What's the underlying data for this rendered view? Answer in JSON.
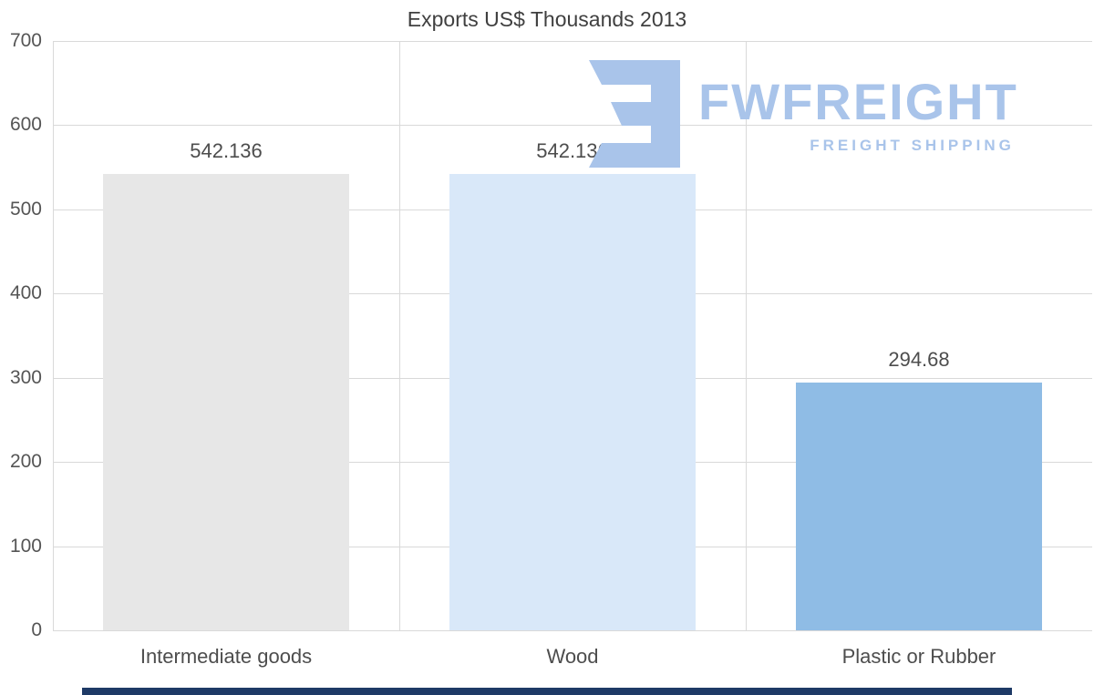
{
  "chart_data": {
    "type": "bar",
    "title": "Exports US$ Thousands 2013",
    "categories": [
      "Intermediate goods",
      "Wood",
      "Plastic or Rubber"
    ],
    "values": [
      542.136,
      542.136,
      294.68
    ],
    "value_labels": [
      "542.136",
      "542.136",
      "294.68"
    ],
    "bar_colors": [
      "#e7e7e7",
      "#d9e8f9",
      "#8fbce5"
    ],
    "xlabel": "",
    "ylabel": "",
    "ylim": [
      0,
      700
    ],
    "y_ticks": [
      0,
      100,
      200,
      300,
      400,
      500,
      600,
      700
    ],
    "grid": true,
    "legend": "none"
  },
  "watermark": {
    "brand": "FWFREIGHT",
    "tagline": "FREIGHT SHIPPING",
    "color": "#a9c4ea"
  },
  "colors": {
    "grid": "#d9d9d9",
    "text": "#4d4d4d",
    "footer_bar": "#1e3a66"
  }
}
